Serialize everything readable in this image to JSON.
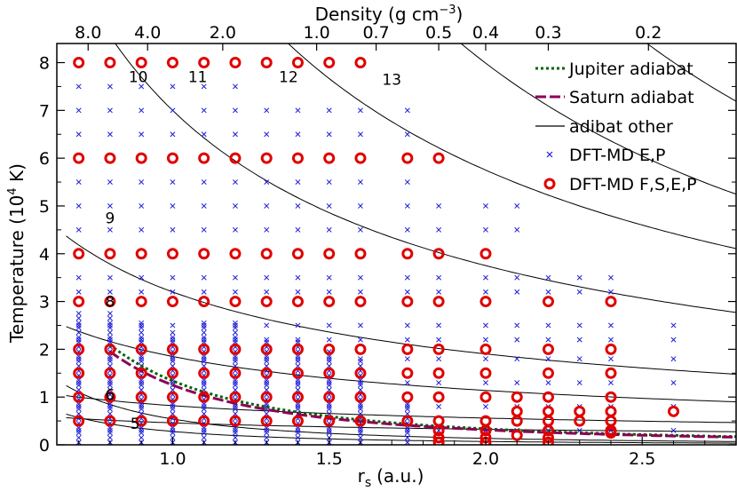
{
  "chart_data": {
    "type": "scatter",
    "title": "",
    "xlabel": "r",
    "xlabel_sub": "s",
    "xlabel_unit": "(a.u.)",
    "ylabel": "Temperature (10",
    "ylabel_sup": "4",
    "ylabel_unit": " K)",
    "top_axis_label": "Density (g cm",
    "top_axis_sup": "−3",
    "top_axis_close": ")",
    "xlim": [
      0.63,
      2.8
    ],
    "ylim": [
      0,
      8.4
    ],
    "x_ticks": [
      {
        "v": 1.0,
        "label": "1.0"
      },
      {
        "v": 1.5,
        "label": "1.5"
      },
      {
        "v": 2.0,
        "label": "2.0"
      },
      {
        "v": 2.5,
        "label": "2.5"
      }
    ],
    "y_ticks": [
      {
        "v": 0,
        "label": "0"
      },
      {
        "v": 1,
        "label": "1"
      },
      {
        "v": 2,
        "label": "2"
      },
      {
        "v": 3,
        "label": "3"
      },
      {
        "v": 4,
        "label": "4"
      },
      {
        "v": 5,
        "label": "5"
      },
      {
        "v": 6,
        "label": "6"
      },
      {
        "v": 7,
        "label": "7"
      },
      {
        "v": 8,
        "label": "8"
      }
    ],
    "top_ticks": [
      {
        "rs": 0.73,
        "label": "8.0"
      },
      {
        "rs": 0.92,
        "label": "4.0"
      },
      {
        "rs": 1.16,
        "label": "2.0"
      },
      {
        "rs": 1.46,
        "label": "1.0"
      },
      {
        "rs": 1.65,
        "label": "0.7"
      },
      {
        "rs": 1.85,
        "label": "0.5"
      },
      {
        "rs": 2.0,
        "label": "0.4"
      },
      {
        "rs": 2.2,
        "label": "0.3"
      },
      {
        "rs": 2.52,
        "label": "0.2"
      }
    ],
    "legend": [
      {
        "key": "jupiter",
        "label": "Jupiter adiabat",
        "color": "#006400",
        "style": "dotted"
      },
      {
        "key": "saturn",
        "label": "Saturn adiabat",
        "color": "#8b0057",
        "style": "dashed"
      },
      {
        "key": "other",
        "label": "adibat other",
        "color": "#000000",
        "style": "solid"
      },
      {
        "key": "dft_ep",
        "label": "DFT-MD E,P",
        "color": "#1c1cd6",
        "style": "x-marker"
      },
      {
        "key": "dft_fsep",
        "label": "DFT-MD F,S,E,P",
        "color": "#e00000",
        "style": "o-marker"
      }
    ],
    "adiabats": [
      {
        "label": "5",
        "p": 0.5,
        "k": 0.46,
        "lx": 0.88,
        "ly": 0.45
      },
      {
        "label": "6",
        "p": 0.55,
        "k": 0.82,
        "lx": 0.8,
        "ly": 1.05
      },
      {
        "label": "8",
        "p": 0.7,
        "k": 1.85,
        "lx": 0.8,
        "ly": 3.0
      },
      {
        "label": "9",
        "p": 0.75,
        "k": 3.2,
        "lx": 0.8,
        "ly": 4.75
      },
      {
        "label": "10",
        "p": 0.9,
        "k": 7.0,
        "lx": 0.89,
        "ly": 7.7
      },
      {
        "label": "11",
        "p": 1.0,
        "k": 11.5,
        "lx": 1.08,
        "ly": 7.7
      },
      {
        "label": "12",
        "p": 1.25,
        "k": 19.0,
        "lx": 1.37,
        "ly": 7.7
      },
      {
        "label": "13",
        "p": 1.45,
        "k": 32.0,
        "lx": 1.7,
        "ly": 7.65
      }
    ],
    "extra_adiabats": [
      {
        "p": 2.0,
        "k": 0.28
      },
      {
        "p": 2.0,
        "k": 0.54
      }
    ],
    "jupiter_adiabat": {
      "p": 2.0,
      "k": 1.34,
      "x_start": 0.8,
      "x_end": 2.8
    },
    "saturn_adiabat": {
      "p": 2.0,
      "k": 1.25,
      "x_start": 0.8,
      "x_end": 2.8
    },
    "dft_fsep_points": [
      [
        0.7,
        8
      ],
      [
        0.8,
        8
      ],
      [
        0.9,
        8
      ],
      [
        1.0,
        8
      ],
      [
        1.1,
        8
      ],
      [
        1.2,
        8
      ],
      [
        1.3,
        8
      ],
      [
        1.4,
        8
      ],
      [
        1.5,
        8
      ],
      [
        1.6,
        8
      ],
      [
        0.7,
        6
      ],
      [
        0.8,
        6
      ],
      [
        0.9,
        6
      ],
      [
        1.0,
        6
      ],
      [
        1.1,
        6
      ],
      [
        1.2,
        6
      ],
      [
        1.3,
        6
      ],
      [
        1.4,
        6
      ],
      [
        1.5,
        6
      ],
      [
        1.6,
        6
      ],
      [
        1.75,
        6
      ],
      [
        1.85,
        6
      ],
      [
        0.7,
        4
      ],
      [
        0.8,
        4
      ],
      [
        0.9,
        4
      ],
      [
        1.0,
        4
      ],
      [
        1.1,
        4
      ],
      [
        1.2,
        4
      ],
      [
        1.3,
        4
      ],
      [
        1.4,
        4
      ],
      [
        1.5,
        4
      ],
      [
        1.6,
        4
      ],
      [
        1.75,
        4
      ],
      [
        1.85,
        4
      ],
      [
        2.0,
        4
      ],
      [
        0.7,
        3
      ],
      [
        0.8,
        3
      ],
      [
        0.9,
        3
      ],
      [
        1.0,
        3
      ],
      [
        1.1,
        3
      ],
      [
        1.2,
        3
      ],
      [
        1.3,
        3
      ],
      [
        1.4,
        3
      ],
      [
        1.5,
        3
      ],
      [
        1.6,
        3
      ],
      [
        1.75,
        3
      ],
      [
        1.85,
        3
      ],
      [
        2.0,
        3
      ],
      [
        2.2,
        3
      ],
      [
        2.4,
        3
      ],
      [
        0.7,
        2
      ],
      [
        0.8,
        2
      ],
      [
        0.9,
        2
      ],
      [
        1.0,
        2
      ],
      [
        1.1,
        2
      ],
      [
        1.2,
        2
      ],
      [
        1.3,
        2
      ],
      [
        1.4,
        2
      ],
      [
        1.5,
        2
      ],
      [
        1.6,
        2
      ],
      [
        1.75,
        2
      ],
      [
        1.85,
        2
      ],
      [
        2.0,
        2
      ],
      [
        2.2,
        2
      ],
      [
        2.4,
        2
      ],
      [
        0.7,
        1.5
      ],
      [
        0.8,
        1.5
      ],
      [
        0.9,
        1.5
      ],
      [
        1.0,
        1.5
      ],
      [
        1.1,
        1.5
      ],
      [
        1.2,
        1.5
      ],
      [
        1.3,
        1.5
      ],
      [
        1.4,
        1.5
      ],
      [
        1.5,
        1.5
      ],
      [
        1.6,
        1.5
      ],
      [
        1.75,
        1.5
      ],
      [
        1.85,
        1.5
      ],
      [
        2.0,
        1.5
      ],
      [
        2.2,
        1.5
      ],
      [
        2.4,
        1.5
      ],
      [
        0.7,
        1
      ],
      [
        0.8,
        1
      ],
      [
        0.9,
        1
      ],
      [
        1.0,
        1
      ],
      [
        1.1,
        1
      ],
      [
        1.2,
        1
      ],
      [
        1.3,
        1
      ],
      [
        1.4,
        1
      ],
      [
        1.5,
        1
      ],
      [
        1.6,
        1
      ],
      [
        1.75,
        1
      ],
      [
        1.85,
        1
      ],
      [
        2.0,
        1
      ],
      [
        2.1,
        1
      ],
      [
        2.2,
        1
      ],
      [
        2.4,
        1
      ],
      [
        0.7,
        0.5
      ],
      [
        0.8,
        0.5
      ],
      [
        0.9,
        0.5
      ],
      [
        1.0,
        0.5
      ],
      [
        1.1,
        0.5
      ],
      [
        1.2,
        0.5
      ],
      [
        1.3,
        0.5
      ],
      [
        1.4,
        0.5
      ],
      [
        1.5,
        0.5
      ],
      [
        1.6,
        0.5
      ],
      [
        1.75,
        0.5
      ],
      [
        1.85,
        0.5
      ],
      [
        2.0,
        0.5
      ],
      [
        2.1,
        0.5
      ],
      [
        2.2,
        0.5
      ],
      [
        2.3,
        0.5
      ],
      [
        2.4,
        0.5
      ],
      [
        2.1,
        0.7
      ],
      [
        2.2,
        0.7
      ],
      [
        2.3,
        0.7
      ],
      [
        2.4,
        0.7
      ],
      [
        2.6,
        0.7
      ],
      [
        1.85,
        0.3
      ],
      [
        2.0,
        0.3
      ],
      [
        2.2,
        0.3
      ],
      [
        2.4,
        0.3
      ],
      [
        1.85,
        0.15
      ],
      [
        2.0,
        0.15
      ],
      [
        2.1,
        0.2
      ],
      [
        2.2,
        0.15
      ],
      [
        2.4,
        0.25
      ],
      [
        1.85,
        0.05
      ],
      [
        2.0,
        0.05
      ],
      [
        2.2,
        0.05
      ]
    ],
    "dft_ep_grid": {
      "columns": [
        0.7,
        0.8,
        0.9,
        1.0,
        1.1,
        1.2,
        1.3,
        1.4,
        1.5,
        1.6,
        1.75,
        1.85,
        2.0,
        2.1,
        2.2,
        2.3,
        2.4,
        2.6
      ],
      "temps": [
        7.5,
        7,
        6.5,
        5.5,
        5,
        4.5,
        3.5,
        3.2,
        2.5,
        2.2,
        1.8,
        1.3,
        0.8,
        0.3
      ],
      "col_tmax": [
        7.5,
        7.5,
        7.5,
        7.5,
        7.5,
        7.5,
        7,
        7,
        7,
        7,
        7,
        5,
        5,
        5,
        4,
        4,
        3.5,
        3
      ]
    },
    "dft_ep_dense_cols": [
      0.7,
      0.8,
      0.9,
      1.0,
      1.1,
      1.2,
      1.3,
      1.4,
      1.5,
      1.6,
      1.75
    ],
    "dft_ep_dense_tmax": [
      2.8,
      2.8,
      2.6,
      2.4,
      2.6,
      2.6,
      2.2,
      2.2,
      2.0,
      1.8,
      0.9
    ]
  }
}
